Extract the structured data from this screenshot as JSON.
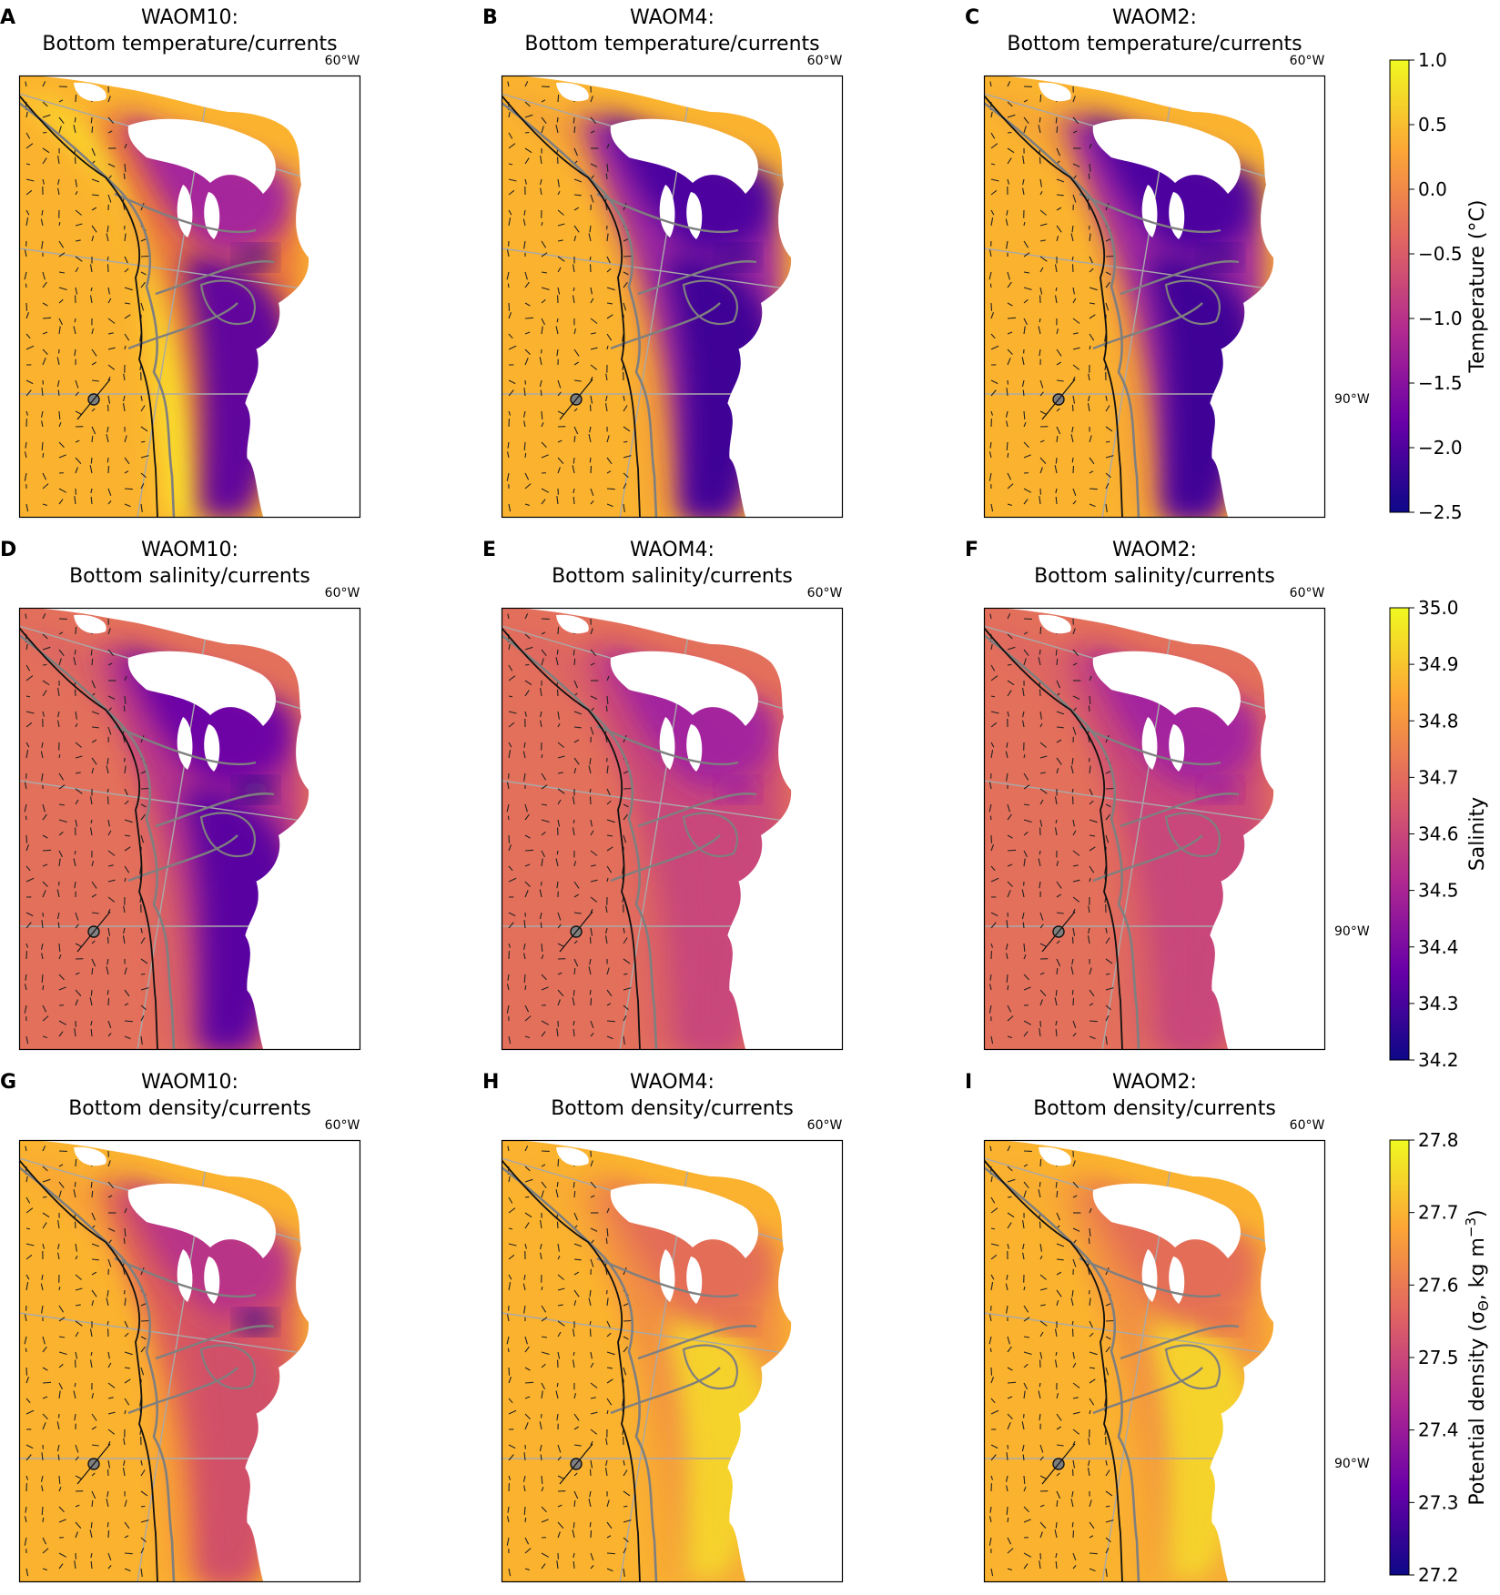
{
  "figure": {
    "panels": [
      {
        "letter": "A",
        "title_line1": "WAOM10:",
        "title_line2": "Bottom temperature/currents",
        "variant": "temp10"
      },
      {
        "letter": "B",
        "title_line1": "WAOM4:",
        "title_line2": "Bottom temperature/currents",
        "variant": "temp4"
      },
      {
        "letter": "C",
        "title_line1": "WAOM2:",
        "title_line2": "Bottom temperature/currents",
        "variant": "temp2"
      },
      {
        "letter": "D",
        "title_line1": "WAOM10:",
        "title_line2": "Bottom salinity/currents",
        "variant": "sal10"
      },
      {
        "letter": "E",
        "title_line1": "WAOM4:",
        "title_line2": "Bottom salinity/currents",
        "variant": "sal4"
      },
      {
        "letter": "F",
        "title_line1": "WAOM2:",
        "title_line2": "Bottom salinity/currents",
        "variant": "sal2"
      },
      {
        "letter": "G",
        "title_line1": "WAOM10:",
        "title_line2": "Bottom density/currents",
        "variant": "den10"
      },
      {
        "letter": "H",
        "title_line1": "WAOM4:",
        "title_line2": "Bottom density/currents",
        "variant": "den4"
      },
      {
        "letter": "I",
        "title_line1": "WAOM2:",
        "title_line2": "Bottom density/currents",
        "variant": "den2"
      }
    ],
    "lon_label_top": "60°W",
    "lon_label_right": "90°W"
  },
  "chart_data": [
    {
      "type": "heatmap",
      "row": "temperature",
      "colorbar_label": "Temperature (°C)",
      "ticks": [
        "1.0",
        "0.5",
        "0.0",
        "−0.5",
        "−1.0",
        "−1.5",
        "−2.0",
        "−2.5"
      ],
      "vmin": -2.5,
      "vmax": 1.0,
      "colormap": [
        "#0d0887",
        "#6a00a8",
        "#b12a90",
        "#e16462",
        "#fca636",
        "#f0f921"
      ]
    },
    {
      "type": "heatmap",
      "row": "salinity",
      "colorbar_label": "Salinity",
      "ticks": [
        "35.0",
        "34.9",
        "34.8",
        "34.7",
        "34.6",
        "34.5",
        "34.4",
        "34.3",
        "34.2"
      ],
      "vmin": 34.2,
      "vmax": 35.0,
      "colormap": [
        "#0d0887",
        "#6a00a8",
        "#b12a90",
        "#e16462",
        "#fca636",
        "#f0f921"
      ]
    },
    {
      "type": "heatmap",
      "row": "density",
      "colorbar_label": "Potential density (σ",
      "colorbar_label_sub": "Θ",
      "colorbar_label_tail": ", kg m",
      "colorbar_label_sup": "−3",
      "colorbar_label_end": ")",
      "ticks": [
        "27.8",
        "27.7",
        "27.6",
        "27.5",
        "27.4",
        "27.3",
        "27.2"
      ],
      "vmin": 27.2,
      "vmax": 27.8,
      "colormap": [
        "#0d0887",
        "#6a00a8",
        "#b12a90",
        "#e16462",
        "#fca636",
        "#f0f921"
      ]
    }
  ]
}
